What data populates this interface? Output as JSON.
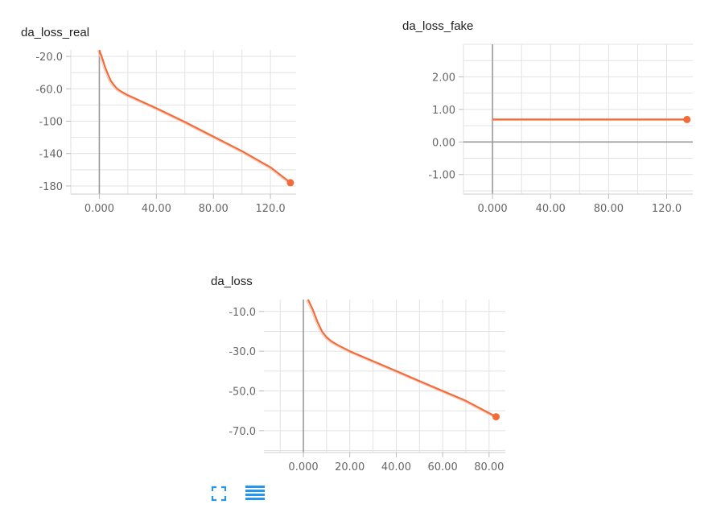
{
  "chart_data": [
    {
      "type": "line",
      "title": "da_loss_real",
      "xlim": [
        -20,
        138
      ],
      "ylim": [
        -190,
        -12
      ],
      "xticks": [
        0,
        40,
        80,
        120
      ],
      "xtick_labels": [
        "0.000",
        "40.00",
        "80.00",
        "120.0"
      ],
      "yticks": [
        -20,
        -60,
        -100,
        -140,
        -180
      ],
      "ytick_labels": [
        "-20.0",
        "-60.0",
        "-100",
        "-140",
        "-180"
      ],
      "grid": true,
      "series": [
        {
          "color": "#f26b38",
          "x": [
            0,
            2,
            4,
            6,
            8,
            10,
            12,
            14,
            16,
            18,
            20,
            25,
            30,
            40,
            60,
            80,
            100,
            120,
            134
          ],
          "y": [
            -12,
            -22,
            -33,
            -42,
            -50,
            -55,
            -59,
            -62,
            -64,
            -66,
            -68,
            -72,
            -76,
            -84,
            -101,
            -119,
            -137,
            -157,
            -176
          ]
        }
      ]
    },
    {
      "type": "line",
      "title": "da_loss_fake",
      "xlim": [
        -20,
        138
      ],
      "ylim": [
        -1.6,
        3
      ],
      "xticks": [
        0,
        40,
        80,
        120
      ],
      "xtick_labels": [
        "0.000",
        "40.00",
        "80.00",
        "120.0"
      ],
      "yticks": [
        2,
        1,
        0,
        -1
      ],
      "ytick_labels": [
        "2.00",
        "1.00",
        "0.00",
        "-1.00"
      ],
      "grid": true,
      "series": [
        {
          "color": "#f26b38",
          "x": [
            0,
            134
          ],
          "y": [
            0.69,
            0.69
          ]
        }
      ]
    },
    {
      "type": "line",
      "title": "da_loss",
      "xlim": [
        -17,
        87
      ],
      "ylim": [
        -81,
        -4
      ],
      "xticks": [
        0,
        20,
        40,
        60,
        80
      ],
      "xtick_labels": [
        "0.000",
        "20.00",
        "40.00",
        "60.00",
        "80.00"
      ],
      "yticks": [
        -10,
        -30,
        -50,
        -70
      ],
      "ytick_labels": [
        "-10.0",
        "-30.0",
        "-50.0",
        "-70.0"
      ],
      "grid": true,
      "series": [
        {
          "color": "#f26b38",
          "x": [
            2,
            4,
            6,
            8,
            10,
            12,
            15,
            20,
            30,
            40,
            50,
            60,
            70,
            83
          ],
          "y": [
            -4,
            -9,
            -15,
            -20,
            -23,
            -25,
            -27,
            -30,
            -35,
            -40,
            -45,
            -50,
            -55,
            -63
          ]
        }
      ]
    }
  ],
  "toolbar": {
    "fullscreen_icon": "fullscreen-icon",
    "menu_icon": "menu-lines-icon",
    "icon_color": "#2196f3"
  }
}
